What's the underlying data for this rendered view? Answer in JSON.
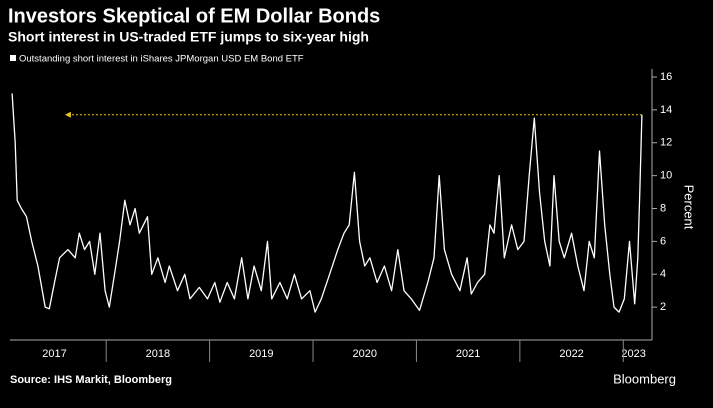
{
  "chart_data": {
    "type": "line",
    "title": "Investors Skeptical of EM Dollar Bonds",
    "subtitle": "Short interest in US-traded ETF jumps to six-year high",
    "y_label": "Percent",
    "source": "Source: IHS Markit, Bloomberg",
    "brand": "Bloomberg",
    "x": [
      2017.09,
      2017.12,
      2017.14,
      2017.18,
      2017.23,
      2017.28,
      2017.34,
      2017.41,
      2017.45,
      2017.5,
      2017.55,
      2017.63,
      2017.7,
      2017.74,
      2017.79,
      2017.84,
      2017.89,
      2017.94,
      2017.99,
      2018.03,
      2018.08,
      2018.13,
      2018.18,
      2018.23,
      2018.28,
      2018.32,
      2018.4,
      2018.44,
      2018.5,
      2018.57,
      2018.61,
      2018.69,
      2018.76,
      2018.81,
      2018.9,
      2018.98,
      2019.05,
      2019.1,
      2019.17,
      2019.24,
      2019.31,
      2019.37,
      2019.43,
      2019.5,
      2019.56,
      2019.6,
      2019.68,
      2019.75,
      2019.82,
      2019.89,
      2019.97,
      2020.02,
      2020.08,
      2020.16,
      2020.24,
      2020.3,
      2020.35,
      2020.4,
      2020.45,
      2020.5,
      2020.55,
      2020.62,
      2020.69,
      2020.76,
      2020.82,
      2020.88,
      2020.95,
      2021.03,
      2021.11,
      2021.17,
      2021.22,
      2021.27,
      2021.34,
      2021.42,
      2021.49,
      2021.53,
      2021.59,
      2021.66,
      2021.71,
      2021.75,
      2021.8,
      2021.85,
      2021.92,
      2021.98,
      2022.04,
      2022.09,
      2022.14,
      2022.19,
      2022.24,
      2022.29,
      2022.33,
      2022.38,
      2022.43,
      2022.5,
      2022.56,
      2022.62,
      2022.67,
      2022.72,
      2022.77,
      2022.82,
      2022.87,
      2022.91,
      2022.96,
      2023.01,
      2023.06,
      2023.11,
      2023.14,
      2023.16,
      2023.18
    ],
    "series": [
      {
        "name": "Outstanding short interest in iShares JPMorgan USD EM Bond ETF",
        "color": "#ffffff",
        "values": [
          15,
          12,
          8.5,
          8,
          7.5,
          6,
          4.5,
          2,
          1.9,
          3.5,
          5,
          5.5,
          5,
          6.5,
          5.5,
          6,
          4,
          6.5,
          3,
          2,
          4,
          6,
          8.5,
          7,
          8,
          6.5,
          7.5,
          4,
          5,
          3.5,
          4.5,
          3,
          4,
          2.5,
          3.2,
          2.5,
          3.5,
          2.3,
          3.5,
          2.5,
          5,
          2.5,
          4.5,
          3,
          6,
          2.5,
          3.5,
          2.5,
          4,
          2.5,
          3,
          1.7,
          2.5,
          4,
          5.5,
          6.5,
          7,
          10.2,
          6,
          4.5,
          5,
          3.5,
          4.5,
          3,
          5.5,
          3,
          2.5,
          1.8,
          3.5,
          5,
          10,
          5.5,
          4,
          3,
          5,
          2.8,
          3.5,
          4,
          7,
          6.5,
          10,
          5,
          7,
          5.5,
          6,
          10,
          13.5,
          9,
          6,
          4.5,
          10,
          6,
          5,
          6.5,
          4.5,
          3,
          6,
          5,
          11.5,
          7,
          4,
          2,
          1.7,
          2.5,
          6,
          2.2,
          5,
          9,
          13.7
        ]
      }
    ],
    "reference": {
      "y": 13.7,
      "x": [
        2017.63,
        2023.18
      ],
      "color": "#e8c520"
    },
    "xlim": [
      2017.07,
      2023.21
    ],
    "xticks": [
      {
        "value": 2017.5,
        "label": "2017"
      },
      {
        "value": 2018.5,
        "label": "2018"
      },
      {
        "value": 2019.5,
        "label": "2019"
      },
      {
        "value": 2020.5,
        "label": "2020"
      },
      {
        "value": 2021.5,
        "label": "2021"
      },
      {
        "value": 2022.5,
        "label": "2022"
      },
      {
        "value": 2023.1,
        "label": "2023"
      }
    ],
    "ylim": [
      0,
      16
    ],
    "yticks": [
      2,
      4,
      6,
      8,
      10,
      12,
      14,
      16
    ]
  }
}
